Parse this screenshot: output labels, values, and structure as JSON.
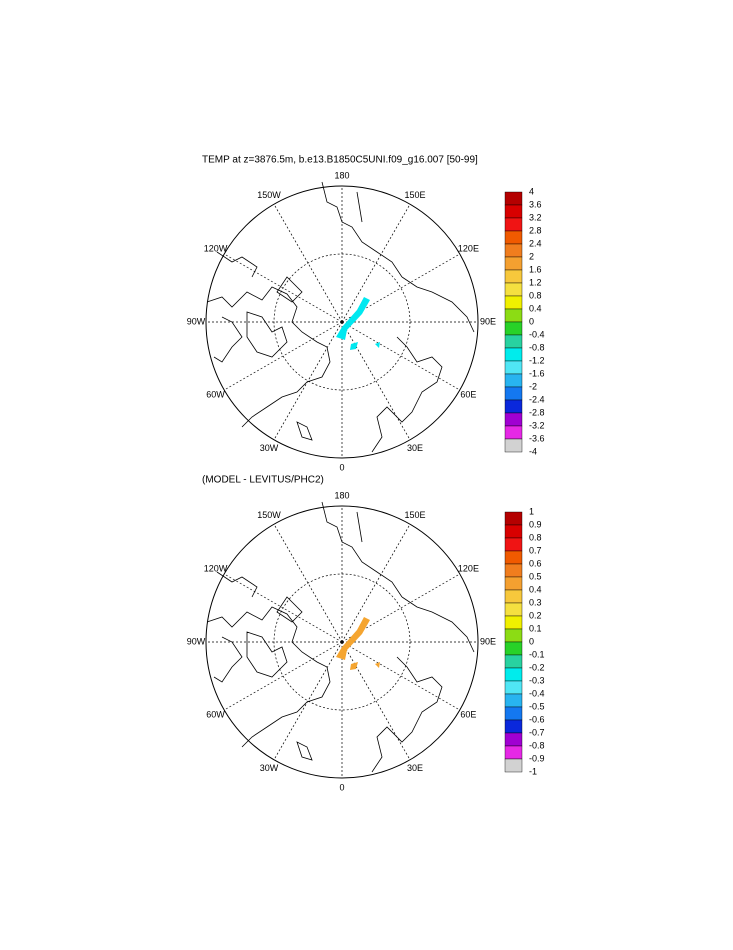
{
  "panels": [
    {
      "title": "TEMP at z=3876.5m, b.e13.B1850C5UNI.f09_g16.007 [50-99]",
      "lon_labels": [
        "0",
        "30E",
        "60E",
        "90E",
        "120E",
        "150E",
        "180",
        "150W",
        "120W",
        "90W",
        "60W",
        "30W"
      ],
      "field_color": "#00e8f0",
      "colorbar": {
        "labels": [
          "4",
          "3.6",
          "3.2",
          "2.8",
          "2.4",
          "2",
          "1.6",
          "1.2",
          "0.8",
          "0.4",
          "0",
          "-0.4",
          "-0.8",
          "-1.2",
          "-1.6",
          "-2",
          "-2.4",
          "-2.8",
          "-3.2",
          "-3.6",
          "-4"
        ],
        "colors": [
          "#b40000",
          "#d80000",
          "#f01414",
          "#f05a00",
          "#f07d1e",
          "#f4a030",
          "#f7c83c",
          "#f5e040",
          "#f0f000",
          "#8cdc14",
          "#28d228",
          "#28d2a0",
          "#00ecec",
          "#50e6f5",
          "#28b4f0",
          "#1478f0",
          "#0a28dc",
          "#a000d2",
          "#e628e6",
          "#d2d2d2"
        ]
      }
    },
    {
      "title": "(MODEL - LEVITUS/PHC2)",
      "lon_labels": [
        "0",
        "30E",
        "60E",
        "90E",
        "120E",
        "150E",
        "180",
        "150W",
        "120W",
        "90W",
        "60W",
        "30W"
      ],
      "field_color": "#f5a530",
      "colorbar": {
        "labels": [
          "1",
          "0.9",
          "0.8",
          "0.7",
          "0.6",
          "0.5",
          "0.4",
          "0.3",
          "0.2",
          "0.1",
          "0",
          "-0.1",
          "-0.2",
          "-0.3",
          "-0.4",
          "-0.5",
          "-0.6",
          "-0.7",
          "-0.8",
          "-0.9",
          "-1"
        ],
        "colors": [
          "#b40000",
          "#d80000",
          "#f01414",
          "#f05a00",
          "#f07d1e",
          "#f4a030",
          "#f7c83c",
          "#f5e040",
          "#f0f000",
          "#8cdc14",
          "#28d228",
          "#28d2a0",
          "#00ecec",
          "#50e6f5",
          "#28b4f0",
          "#1478f0",
          "#0a28dc",
          "#a000d2",
          "#e628e6",
          "#d2d2d2"
        ]
      }
    }
  ]
}
